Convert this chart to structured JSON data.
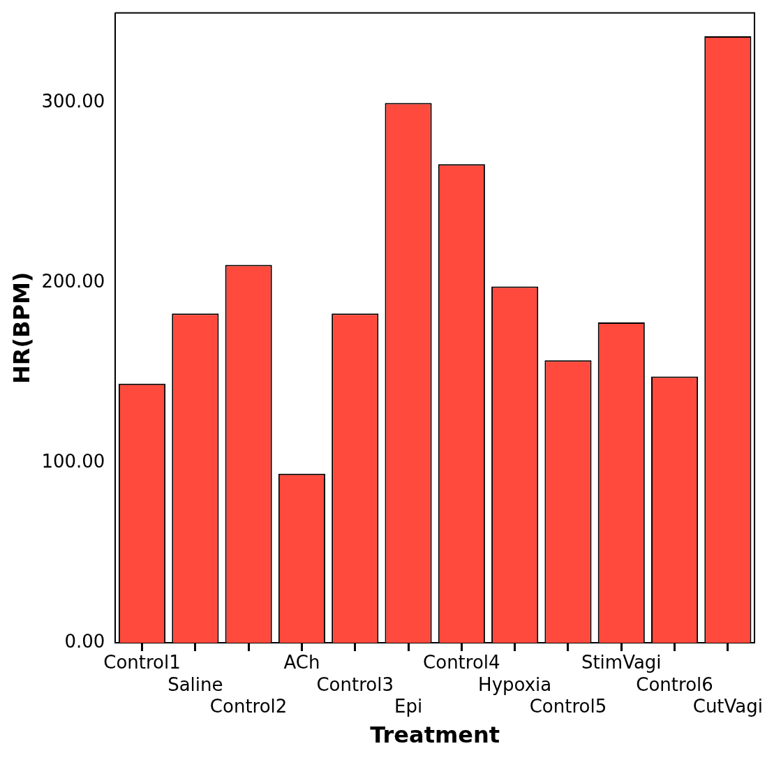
{
  "chart_data": {
    "type": "bar",
    "xlabel": "Treatment",
    "ylabel": "HR(BPM)",
    "categories": [
      "Control1",
      "Saline",
      "Control2",
      "ACh",
      "Control3",
      "Epi",
      "Control4",
      "Hypoxia",
      "Control5",
      "StimVagi",
      "Control6",
      "CutVagi"
    ],
    "values": [
      144,
      183,
      210,
      94,
      183,
      300,
      266,
      198,
      157,
      178,
      148,
      337
    ],
    "color": "#ff4a3d",
    "ylim": [
      0,
      350
    ],
    "yticks": [
      {
        "value": 0,
        "label": "0.00"
      },
      {
        "value": 100,
        "label": "100.00"
      },
      {
        "value": 200,
        "label": "200.00"
      },
      {
        "value": 300,
        "label": "300.00"
      }
    ]
  }
}
